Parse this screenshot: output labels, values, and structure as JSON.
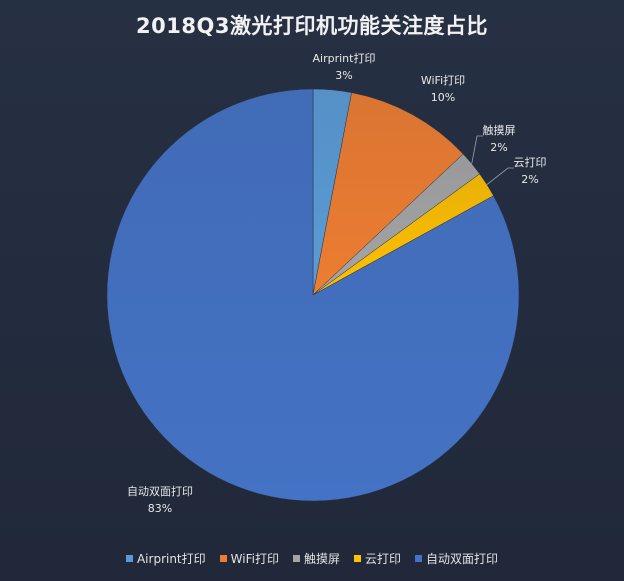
{
  "chart_data": {
    "type": "pie",
    "title": "2018Q3激光打印机功能关注度占比",
    "start_angle_deg": 0,
    "direction": "clockwise",
    "legend_position": "bottom",
    "slices": [
      {
        "label": "Airprint打印",
        "value": 3,
        "value_label": "3%",
        "color": "#5b9bd5"
      },
      {
        "label": "WiFi打印",
        "value": 10,
        "value_label": "10%",
        "color": "#ed7d31"
      },
      {
        "label": "触摸屏",
        "value": 2,
        "value_label": "2%",
        "color": "#a5a5a5"
      },
      {
        "label": "云打印",
        "value": 2,
        "value_label": "2%",
        "color": "#ffc000"
      },
      {
        "label": "自动双面打印",
        "value": 83,
        "value_label": "83%",
        "color": "#4472c4"
      }
    ]
  }
}
